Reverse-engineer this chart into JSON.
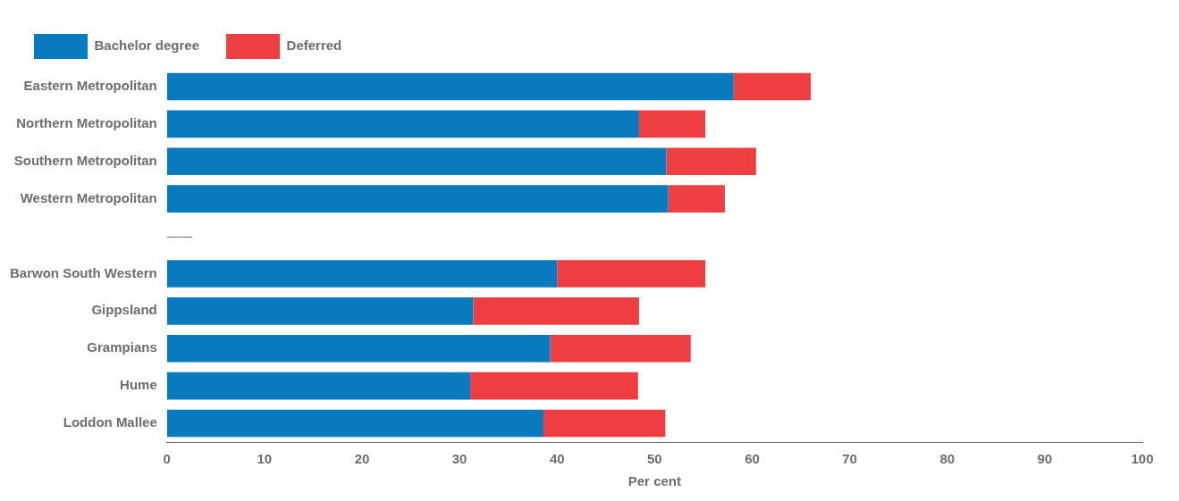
{
  "chart_data": {
    "type": "bar",
    "orientation": "horizontal",
    "stacked": true,
    "xlabel": "Per cent",
    "categories": [
      "Eastern Metropolitan",
      "Northern Metropolitan",
      "Southern Metropolitan",
      "Western Metropolitan",
      null,
      "Barwon South Western",
      "Gippsland",
      "Grampians",
      "Hume",
      "Loddon Mallee"
    ],
    "series": [
      {
        "name": "Bachelor degree",
        "color": "#0a7abf",
        "values": [
          58.1,
          48.4,
          51.2,
          51.4,
          null,
          40.0,
          31.4,
          39.3,
          31.1,
          38.6
        ]
      },
      {
        "name": "Deferred",
        "color": "#ef3e42",
        "values": [
          7.9,
          6.8,
          9.2,
          5.8,
          null,
          15.2,
          17.0,
          14.4,
          17.2,
          12.5
        ]
      }
    ],
    "xlim": [
      0,
      100
    ],
    "xticks": [
      0,
      10,
      20,
      30,
      40,
      50,
      60,
      70,
      80,
      90,
      100
    ],
    "grid": false,
    "legend": "top left"
  }
}
